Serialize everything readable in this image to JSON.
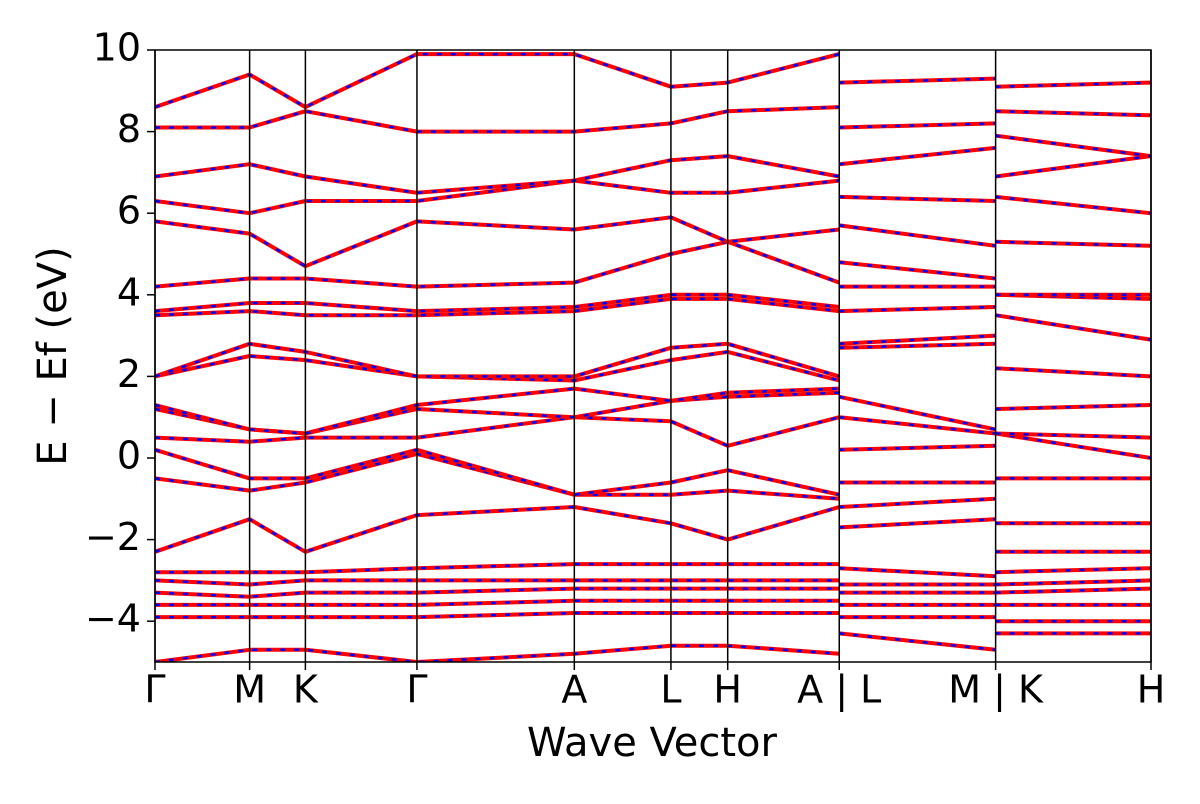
{
  "chart_data": {
    "type": "line",
    "x_label": "Wave Vector",
    "y_label": "E − Ef (eV)",
    "x": [
      0,
      0.095,
      0.151,
      0.263,
      0.421,
      0.518,
      0.575,
      0.687,
      0.687,
      0.687,
      0.844,
      0.844,
      0.844,
      1.0
    ],
    "xlim": [
      0,
      1.0
    ],
    "xticks": [
      {
        "value": 0,
        "label": "Γ"
      },
      {
        "value": 0.095,
        "label": "M"
      },
      {
        "value": 0.151,
        "label": "K"
      },
      {
        "value": 0.263,
        "label": "Γ"
      },
      {
        "value": 0.421,
        "label": "A"
      },
      {
        "value": 0.518,
        "label": "L"
      },
      {
        "value": 0.575,
        "label": "H"
      },
      {
        "value": 0.687,
        "label": "A | L"
      },
      {
        "value": 0.844,
        "label": "M | K"
      },
      {
        "value": 1.0,
        "label": "H"
      }
    ],
    "ylim": [
      -5,
      10
    ],
    "yticks": [
      {
        "value": -4,
        "label": "−4"
      },
      {
        "value": -2,
        "label": "−2"
      },
      0,
      2,
      4,
      6,
      8,
      10
    ],
    "dash_color": "#0000ff",
    "series": [
      {
        "color": "#ff0000",
        "values": [
          -5,
          -4.7,
          -4.7,
          -5,
          -4.8,
          -4.6,
          -4.6,
          -4.8,
          null,
          -4.3,
          -4.7,
          null,
          -4.3,
          -4.3
        ]
      },
      {
        "color": "#ff0000",
        "values": [
          -3.9,
          -3.9,
          -3.9,
          -3.9,
          -3.8,
          -3.8,
          -3.8,
          -3.8,
          null,
          -3.9,
          -3.9,
          null,
          -4.0,
          -4.0
        ]
      },
      {
        "color": "#ff0000",
        "values": [
          -3.6,
          -3.6,
          -3.6,
          -3.6,
          -3.5,
          -3.5,
          -3.5,
          -3.5,
          null,
          -3.6,
          -3.6,
          null,
          -3.6,
          -3.6
        ]
      },
      {
        "color": "#ff0000",
        "values": [
          -3.3,
          -3.4,
          -3.3,
          -3.3,
          -3.2,
          -3.2,
          -3.2,
          -3.2,
          null,
          -3.3,
          -3.3,
          null,
          -3.3,
          -3.2
        ]
      },
      {
        "color": "#ff0000",
        "values": [
          -3.0,
          -3.1,
          -3.0,
          -3.0,
          -3.0,
          -3.0,
          -3.0,
          -3.0,
          null,
          -3.1,
          -3.1,
          null,
          -3.1,
          -3.0
        ]
      },
      {
        "color": "#ff0000",
        "values": [
          -2.8,
          -2.8,
          -2.8,
          -2.7,
          -2.6,
          -2.6,
          -2.6,
          -2.6,
          null,
          -2.7,
          -2.9,
          null,
          -2.8,
          -2.7
        ]
      },
      {
        "color": "#ff0000",
        "values": [
          -2.3,
          -1.5,
          -2.3,
          -1.4,
          -1.2,
          -1.6,
          -2.0,
          -1.2,
          null,
          -1.7,
          -1.5,
          null,
          -2.3,
          -2.3
        ]
      },
      {
        "color": "#ff0000",
        "values": [
          -0.5,
          -0.8,
          -0.6,
          0.1,
          -0.9,
          -0.9,
          -0.8,
          -1.0,
          null,
          -1.2,
          -1.0,
          null,
          -1.6,
          -1.6
        ]
      },
      {
        "color": "#ff0000",
        "values": [
          0.2,
          -0.5,
          -0.5,
          0.2,
          -0.9,
          -0.6,
          -0.3,
          -0.9,
          null,
          -0.6,
          -0.6,
          null,
          -0.5,
          -0.5
        ]
      },
      {
        "color": "#ff0000",
        "values": [
          0.5,
          0.4,
          0.5,
          0.5,
          1.0,
          0.9,
          0.3,
          1.0,
          null,
          0.2,
          0.3,
          null,
          0.6,
          0.0
        ]
      },
      {
        "color": "#ff0000",
        "values": [
          1.2,
          0.7,
          0.6,
          1.2,
          1.0,
          1.4,
          1.5,
          1.6,
          null,
          1.0,
          0.6,
          null,
          0.6,
          0.5
        ]
      },
      {
        "color": "#ff0000",
        "values": [
          1.3,
          0.7,
          0.6,
          1.3,
          1.7,
          1.4,
          1.6,
          1.7,
          null,
          1.5,
          0.7,
          null,
          1.2,
          1.3
        ]
      },
      {
        "color": "#ff0000",
        "values": [
          2.0,
          2.5,
          2.4,
          2.0,
          1.9,
          2.4,
          2.6,
          1.9,
          null,
          2.7,
          2.8,
          null,
          2.2,
          2.0
        ]
      },
      {
        "color": "#ff0000",
        "values": [
          2.0,
          2.8,
          2.6,
          2.0,
          2.0,
          2.7,
          2.8,
          2.0,
          null,
          2.8,
          3.0,
          null,
          3.5,
          2.9
        ]
      },
      {
        "color": "#ff0000",
        "values": [
          3.5,
          3.6,
          3.5,
          3.5,
          3.6,
          3.9,
          3.9,
          3.6,
          null,
          3.6,
          3.7,
          null,
          4.0,
          3.9
        ]
      },
      {
        "color": "#ff0000",
        "values": [
          3.6,
          3.8,
          3.8,
          3.6,
          3.7,
          4.0,
          4.0,
          3.7,
          null,
          4.2,
          4.2,
          null,
          4.0,
          4.0
        ]
      },
      {
        "color": "#ff0000",
        "values": [
          4.2,
          4.4,
          4.4,
          4.2,
          4.3,
          5.0,
          5.3,
          4.3,
          null,
          4.8,
          4.4,
          null,
          5.3,
          5.2
        ]
      },
      {
        "color": "#ff0000",
        "values": [
          5.8,
          5.5,
          4.7,
          5.8,
          5.6,
          5.9,
          5.3,
          5.6,
          null,
          5.7,
          5.2,
          null,
          6.4,
          6.0
        ]
      },
      {
        "color": "#ff0000",
        "values": [
          6.3,
          6.0,
          6.3,
          6.3,
          6.8,
          6.5,
          6.5,
          6.8,
          null,
          6.4,
          6.3,
          null,
          6.9,
          7.4
        ]
      },
      {
        "color": "#ff0000",
        "values": [
          6.9,
          7.2,
          6.9,
          6.5,
          6.8,
          7.3,
          7.4,
          6.9,
          null,
          7.2,
          7.6,
          null,
          7.9,
          7.4
        ]
      },
      {
        "color": "#ff0000",
        "values": [
          8.1,
          8.1,
          8.5,
          8.0,
          8.0,
          8.2,
          8.5,
          8.6,
          null,
          8.1,
          8.2,
          null,
          8.5,
          8.4
        ]
      },
      {
        "color": "#ff0000",
        "values": [
          8.6,
          9.4,
          8.6,
          9.9,
          9.9,
          9.1,
          9.2,
          9.9,
          null,
          9.2,
          9.3,
          null,
          9.1,
          9.2
        ]
      }
    ]
  }
}
